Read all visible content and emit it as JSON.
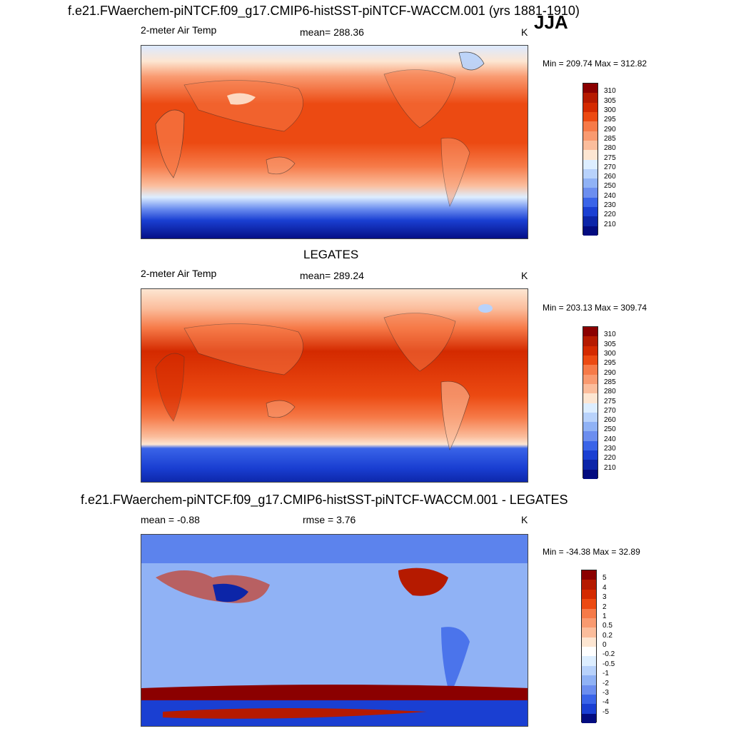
{
  "header": {
    "title": "f.e21.FWaerchem-piNTCF.f09_g17.CMIP6-histSST-piNTCF-WACCM.001 (yrs 1881-1910)",
    "season": "JJA"
  },
  "panel1": {
    "left_label": "2-meter Air Temp",
    "mean_label": "mean= 288.36",
    "units": "K",
    "minmax": "Min = 209.74 Max = 312.82"
  },
  "panel2": {
    "title": "LEGATES",
    "left_label": "2-meter Air Temp",
    "mean_label": "mean= 289.24",
    "units": "K",
    "minmax": "Min = 203.13 Max = 309.74"
  },
  "panel3": {
    "title": "f.e21.FWaerchem-piNTCF.f09_g17.CMIP6-histSST-piNTCF-WACCM.001 - LEGATES",
    "left_label": "mean =  -0.88",
    "mean_label": "rmse =   3.76",
    "units": "K",
    "minmax": "Min = -34.38 Max =  32.89"
  },
  "chart_data": [
    {
      "type": "heatmap",
      "title": "2-meter Air Temp",
      "units": "K",
      "mean": 288.36,
      "min": 209.74,
      "max": 312.82,
      "colorbar_levels": [
        "310",
        "305",
        "300",
        "295",
        "290",
        "285",
        "280",
        "275",
        "270",
        "260",
        "250",
        "240",
        "230",
        "220",
        "210"
      ],
      "colorbar_colors": [
        "#8b0000",
        "#b51a00",
        "#d42a00",
        "#ec4a12",
        "#f67a48",
        "#f99a70",
        "#fbbd9c",
        "#fde6d2",
        "#ddeeff",
        "#b8d2fb",
        "#90b2f5",
        "#6c8eef",
        "#3a64e8",
        "#1a3fd2",
        "#0c25a8",
        "#030c80"
      ]
    },
    {
      "type": "heatmap",
      "title": "LEGATES",
      "units": "K",
      "mean": 289.24,
      "min": 203.13,
      "max": 309.74,
      "colorbar_levels": [
        "310",
        "305",
        "300",
        "295",
        "290",
        "285",
        "280",
        "275",
        "270",
        "260",
        "250",
        "240",
        "230",
        "220",
        "210"
      ],
      "colorbar_colors": [
        "#8b0000",
        "#b51a00",
        "#d42a00",
        "#ec4a12",
        "#f67a48",
        "#f99a70",
        "#fbbd9c",
        "#fde6d2",
        "#ddeeff",
        "#b8d2fb",
        "#90b2f5",
        "#6c8eef",
        "#3a64e8",
        "#1a3fd2",
        "#0c25a8",
        "#030c80"
      ]
    },
    {
      "type": "heatmap",
      "title": "f.e21.FWaerchem-piNTCF.f09_g17.CMIP6-histSST-piNTCF-WACCM.001 - LEGATES",
      "units": "K",
      "mean": -0.88,
      "rmse": 3.76,
      "min": -34.38,
      "max": 32.89,
      "colorbar_levels": [
        "5",
        "4",
        "3",
        "2",
        "1",
        "0.5",
        "0.2",
        "0",
        "-0.2",
        "-0.5",
        "-1",
        "-2",
        "-3",
        "-4",
        "-5"
      ],
      "colorbar_colors": [
        "#8b0000",
        "#b51a00",
        "#d42a00",
        "#ec4a12",
        "#f67a48",
        "#f99a70",
        "#fbbd9c",
        "#fde6d2",
        "#ffffff",
        "#ddeeff",
        "#b8d2fb",
        "#90b2f5",
        "#6c8eef",
        "#3a64e8",
        "#1a3fd2",
        "#030c80"
      ]
    }
  ]
}
